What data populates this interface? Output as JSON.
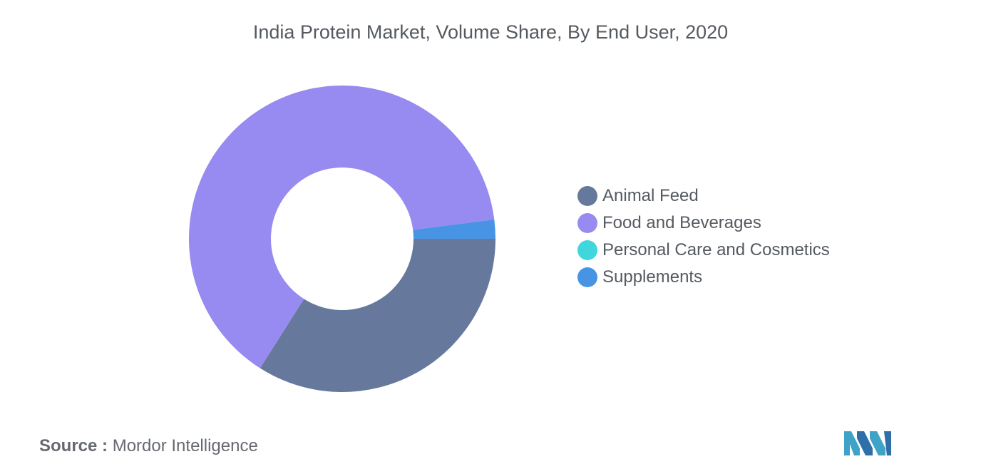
{
  "title": "India Protein Market, Volume Share, By End User, 2020",
  "source": {
    "label": "Source :",
    "value": "Mordor Intelligence"
  },
  "logo": {
    "icon": "mordor-intelligence-logo",
    "colors": [
      "#3fa3c7",
      "#2e6fa8"
    ]
  },
  "chart_data": {
    "type": "pie",
    "donut": true,
    "title": "India Protein Market, Volume Share, By End User, 2020",
    "legend_position": "right",
    "slices": [
      {
        "label": "Animal Feed",
        "value": 34.0,
        "color": "#66789b"
      },
      {
        "label": "Food and Beverages",
        "value": 64.0,
        "color": "#978af0"
      },
      {
        "label": "Personal Care and Cosmetics",
        "value": 0.0,
        "color": "#3fd6dc"
      },
      {
        "label": "Supplements",
        "value": 2.0,
        "color": "#4894e4"
      }
    ]
  }
}
